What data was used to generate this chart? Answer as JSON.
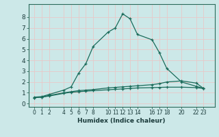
{
  "title": "",
  "xlabel": "Humidex (Indice chaleur)",
  "background_color": "#cce8e8",
  "grid_color": "#e8c8c8",
  "line_color": "#1a6b5a",
  "line1_x": [
    0,
    1,
    2,
    4,
    5,
    6,
    7,
    8,
    10,
    11,
    12,
    13,
    14,
    16,
    17,
    18,
    20,
    22,
    23
  ],
  "line1_y": [
    0.6,
    0.65,
    0.85,
    1.25,
    1.55,
    2.8,
    3.7,
    5.3,
    6.6,
    7.0,
    8.3,
    7.85,
    6.4,
    5.9,
    4.7,
    3.25,
    2.0,
    1.6,
    1.4
  ],
  "line2_x": [
    0,
    1,
    2,
    4,
    5,
    6,
    7,
    8,
    10,
    11,
    12,
    13,
    14,
    16,
    17,
    18,
    20,
    22,
    23
  ],
  "line2_y": [
    0.55,
    0.6,
    0.75,
    1.0,
    1.1,
    1.2,
    1.25,
    1.3,
    1.45,
    1.5,
    1.55,
    1.6,
    1.65,
    1.75,
    1.85,
    2.0,
    2.1,
    1.9,
    1.4
  ],
  "line3_x": [
    0,
    1,
    2,
    4,
    5,
    6,
    7,
    8,
    10,
    11,
    12,
    13,
    14,
    16,
    17,
    18,
    20,
    22,
    23
  ],
  "line3_y": [
    0.55,
    0.6,
    0.7,
    0.95,
    1.05,
    1.1,
    1.15,
    1.2,
    1.28,
    1.32,
    1.36,
    1.4,
    1.45,
    1.48,
    1.5,
    1.52,
    1.52,
    1.48,
    1.4
  ],
  "xticks": [
    0,
    1,
    2,
    4,
    5,
    6,
    7,
    8,
    10,
    11,
    12,
    13,
    14,
    16,
    17,
    18,
    20,
    22,
    23
  ],
  "yticks": [
    0,
    1,
    2,
    3,
    4,
    5,
    6,
    7,
    8
  ],
  "ylim": [
    -0.3,
    9.2
  ],
  "xlim": [
    -0.8,
    24.5
  ]
}
